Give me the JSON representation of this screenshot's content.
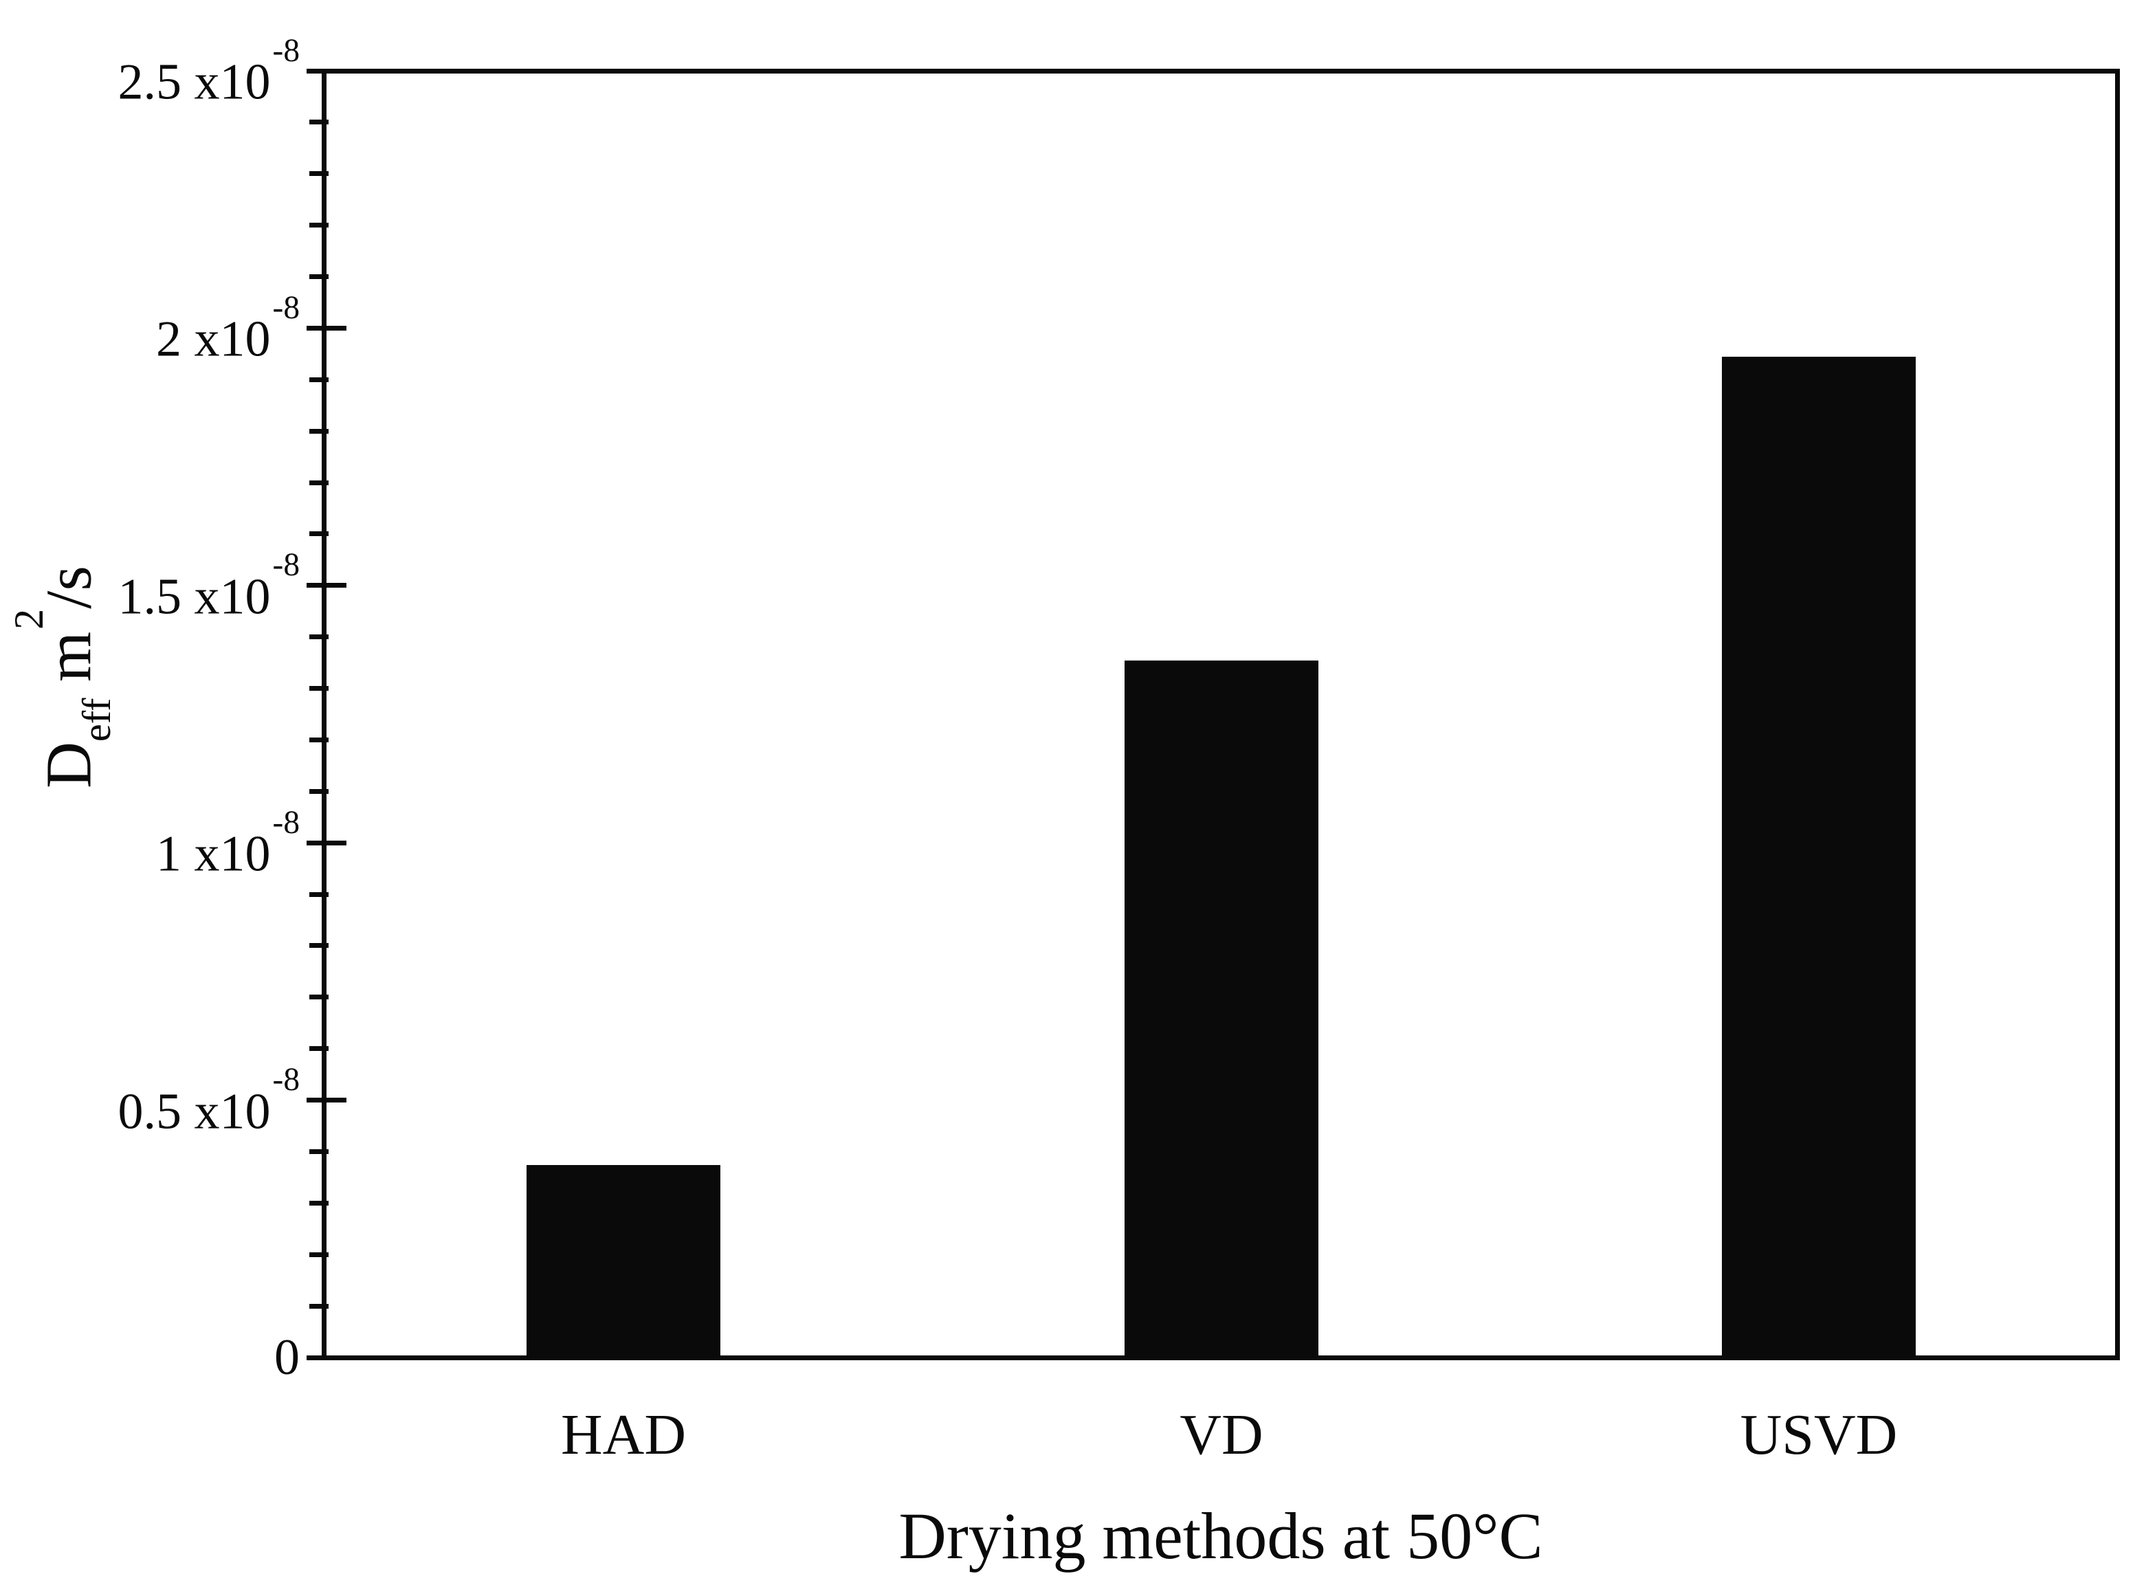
{
  "figure": {
    "background": "#ffffff",
    "ink": "#0a0a0a"
  },
  "chart_data": {
    "type": "bar",
    "title": "",
    "xlabel": "Drying methods at 50°C",
    "ylabel": {
      "base": "D",
      "sub": "eff",
      "mid": " m",
      "sup": "2",
      "end": "/s"
    },
    "ylabel_plain": "Deff m2/s",
    "categories": [
      "HAD",
      "VD",
      "USVD"
    ],
    "values": [
      0.37,
      1.35,
      1.94
    ],
    "value_multiplier": "1e-8",
    "unit": "m2/s",
    "ylim": [
      0,
      2.5
    ],
    "ytick_major_step": 0.5,
    "ytick_minor_step": 0.1,
    "yticks": [
      {
        "v": 0,
        "mantissa": "0",
        "exp": ""
      },
      {
        "v": 0.5,
        "mantissa": "0.5 x10",
        "exp": "-8"
      },
      {
        "v": 1,
        "mantissa": "1 x10",
        "exp": "-8"
      },
      {
        "v": 1.5,
        "mantissa": "1.5 x10",
        "exp": "-8"
      },
      {
        "v": 2,
        "mantissa": "2 x10",
        "exp": "-8"
      },
      {
        "v": 2.5,
        "mantissa": "2.5 x10",
        "exp": "-8"
      }
    ],
    "bar_color": "#0a0a0a",
    "grid": false,
    "legend": false
  }
}
